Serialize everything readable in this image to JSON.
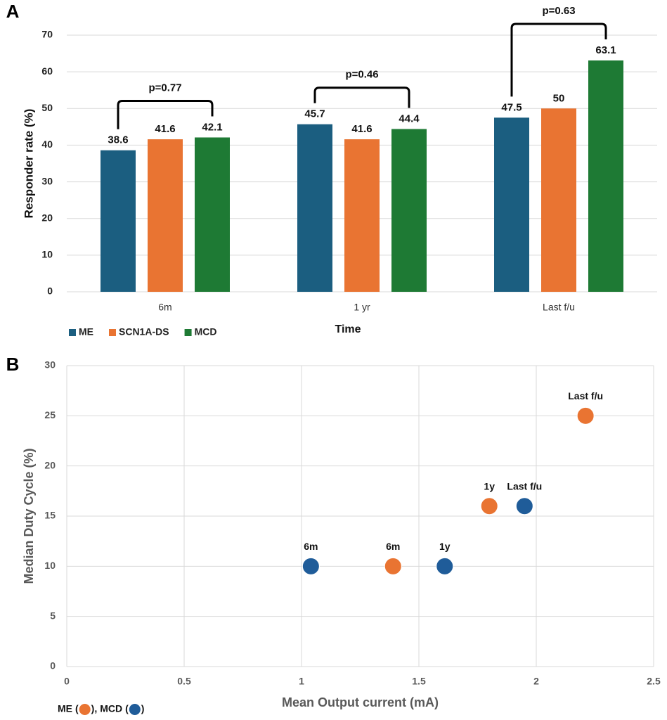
{
  "chart_data": [
    {
      "type": "bar",
      "panel_label": "A",
      "y_label": "Responder rate (%)",
      "x_label": "Time",
      "categories": [
        "6m",
        "1 yr",
        "Last f/u"
      ],
      "series": [
        {
          "name": "ME",
          "color": "#1b5e80",
          "values": [
            38.6,
            45.7,
            47.5
          ]
        },
        {
          "name": "SCN1A-DS",
          "color": "#e97432",
          "values": [
            41.6,
            41.6,
            50
          ]
        },
        {
          "name": "MCD",
          "color": "#1e7a34",
          "values": [
            42.1,
            44.4,
            63.1
          ]
        }
      ],
      "annotations": [
        "p=0.77",
        "p=0.46",
        "p=0.63"
      ],
      "ylim": [
        0,
        70
      ],
      "yticks": [
        0,
        10,
        20,
        30,
        40,
        50,
        60,
        70
      ],
      "grid": true,
      "legend": "bottom-left"
    },
    {
      "type": "scatter",
      "panel_label": "B",
      "y_label": "Median Duty Cycle (%)",
      "x_label": "Mean Output current (mA)",
      "series": [
        {
          "name": "ME",
          "color": "#e97432",
          "x": [
            1.39,
            1.8,
            2.21
          ],
          "values": [
            10,
            16,
            25
          ],
          "labels": [
            "6m",
            "1y",
            "Last f/u"
          ]
        },
        {
          "name": "MCD",
          "color": "#1f5c99",
          "x": [
            1.04,
            1.61,
            1.95
          ],
          "values": [
            10,
            10,
            16
          ],
          "labels": [
            "6m",
            "1y",
            "Last f/u"
          ]
        }
      ],
      "legend_brackets": [
        "(",
        ")"
      ],
      "legend_separator": ",",
      "xlim": [
        0,
        2.5
      ],
      "xticks": [
        0,
        0.5,
        1,
        1.5,
        2,
        2.5
      ],
      "ylim": [
        0,
        30
      ],
      "yticks": [
        0,
        5,
        10,
        15,
        20,
        25,
        30
      ],
      "grid": true,
      "legend": "bottom-left"
    }
  ]
}
